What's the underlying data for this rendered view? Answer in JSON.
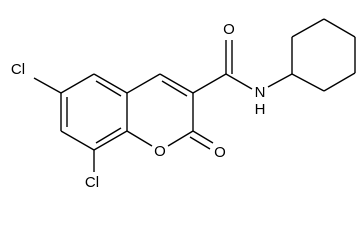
{
  "atoms": [
    {
      "label": "Cl"
    },
    {
      "label": "Cl"
    },
    {
      "label": "O"
    },
    {
      "label": "O"
    },
    {
      "label": "O"
    },
    {
      "label": "N"
    },
    {
      "label": "H"
    }
  ]
}
